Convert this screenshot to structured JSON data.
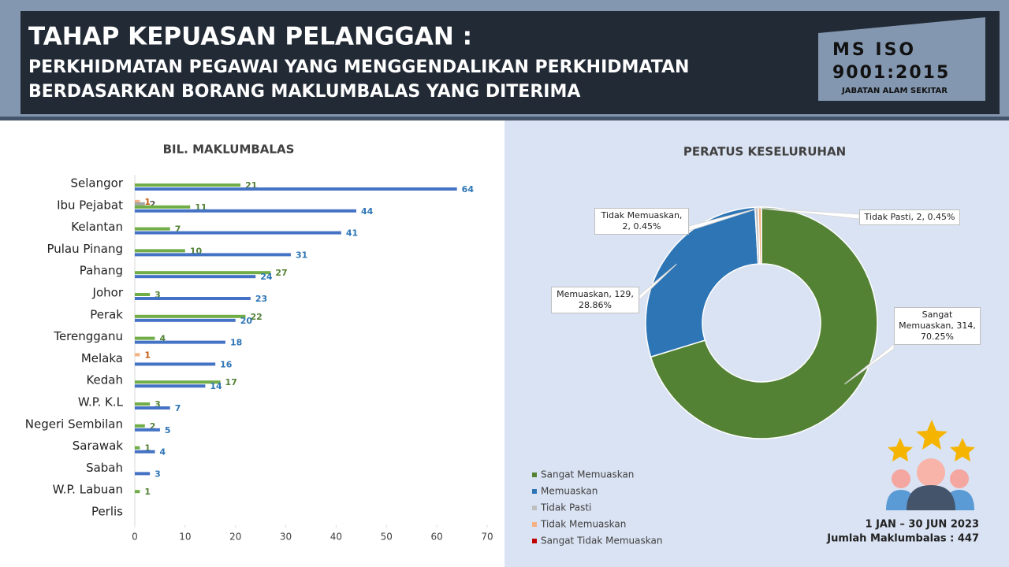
{
  "header": {
    "title": "TAHAP KEPUASAN PELANGGAN :",
    "subtitle_1": "PERKHIDMATAN PEGAWAI YANG MENGGENDALIKAN PERKHIDMATAN",
    "subtitle_2": "BERDASARKAN BORANG MAKLUMBALAS YANG DITERIMA",
    "badge_1": "MS ISO",
    "badge_2": "9001:2015",
    "badge_3": "JABATAN ALAM SEKITAR"
  },
  "footer": {
    "period": "1 JAN – 30 JUN 2023",
    "total": "Jumlah Maklumbalas : 447"
  },
  "chart_data": [
    {
      "type": "bar",
      "orientation": "horizontal",
      "title": "BIL. MAKLUMBALAS",
      "categories": [
        "Selangor",
        "Ibu Pejabat",
        "Kelantan",
        "Pulau Pinang",
        "Pahang",
        "Johor",
        "Perak",
        "Terengganu",
        "Melaka",
        "Kedah",
        "W.P. K.L",
        "Negeri Sembilan",
        "Sarawak",
        "Sabah",
        "W.P. Labuan",
        "Perlis"
      ],
      "series": [
        {
          "color": "#f4b183",
          "values": [
            null,
            1,
            null,
            null,
            null,
            null,
            null,
            null,
            1,
            null,
            null,
            null,
            null,
            null,
            null,
            null
          ]
        },
        {
          "color": "#a5a5a5",
          "values": [
            null,
            2,
            null,
            null,
            null,
            null,
            null,
            null,
            null,
            null,
            null,
            null,
            null,
            null,
            null,
            null
          ]
        },
        {
          "color": "#70ad47",
          "values": [
            21,
            11,
            7,
            10,
            27,
            3,
            22,
            4,
            null,
            17,
            3,
            2,
            1,
            null,
            1,
            null
          ]
        },
        {
          "color": "#4472c4",
          "values": [
            64,
            44,
            41,
            31,
            24,
            23,
            20,
            18,
            16,
            14,
            7,
            5,
            4,
            3,
            null,
            null
          ]
        }
      ],
      "label_colors": [
        "#c55a11",
        "#595959",
        "#548235",
        "#2e75b6"
      ],
      "xlim": [
        0,
        70
      ],
      "xticks": [
        0,
        10,
        20,
        30,
        40,
        50,
        60,
        70
      ]
    },
    {
      "type": "donut",
      "title": "PERATUS KESELURUHAN",
      "categories": [
        "Sangat Memuaskan",
        "Memuaskan",
        "Tidak Pasti",
        "Tidak Memuaskan",
        "Sangat Tidak Memuaskan"
      ],
      "values": [
        314,
        129,
        2,
        2,
        0
      ],
      "value_labels": [
        "Sangat Memuaskan, 314, 70.25%",
        "Memuaskan, 129, 28.86%",
        "Tidak Pasti, 2, 0.45%",
        "Tidak Memuaskan, 2, 0.45%",
        null
      ],
      "colors": [
        "#548235",
        "#2e75b6",
        "#bfbfbf",
        "#f4b183",
        "#c00000"
      ]
    }
  ]
}
